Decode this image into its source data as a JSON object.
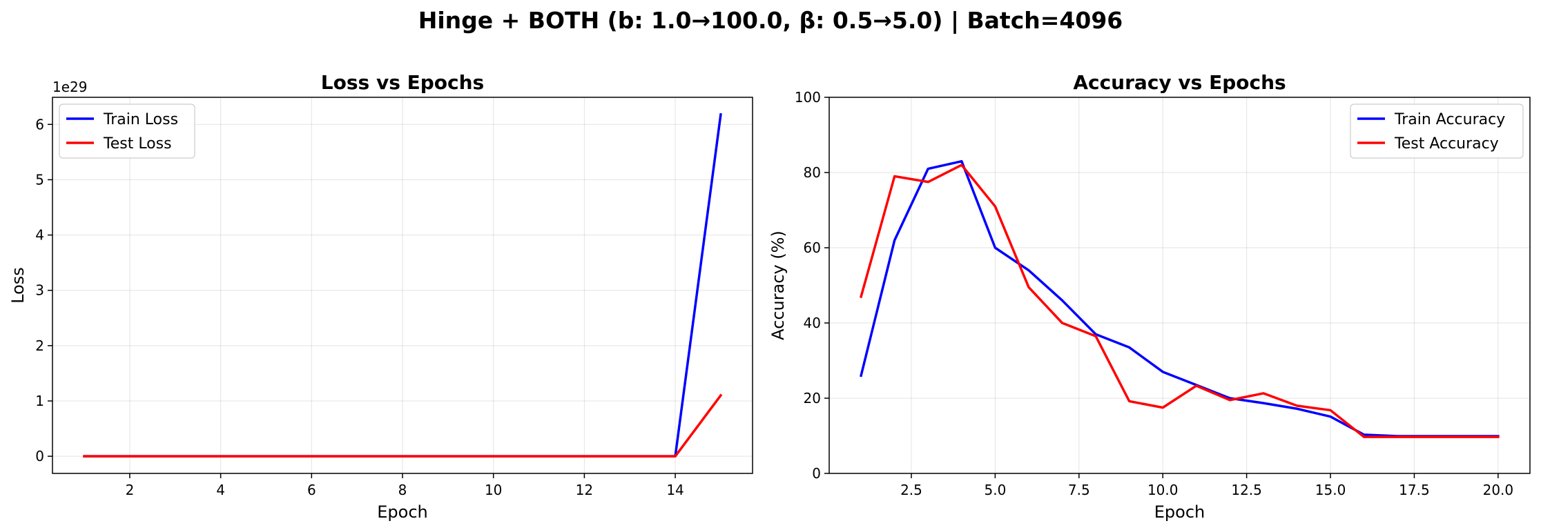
{
  "figure": {
    "suptitle": "Hinge + BOTH (b: 1.0→100.0, β: 0.5→5.0) | Batch=4096"
  },
  "chart_data": [
    {
      "type": "line",
      "title": "Loss vs Epochs",
      "xlabel": "Epoch",
      "ylabel": "Loss",
      "y_offset_label": "1e29",
      "xlim": [
        0.3,
        15.7
      ],
      "ylim": [
        -0.31,
        6.49
      ],
      "x_ticks": [
        2,
        4,
        6,
        8,
        10,
        12,
        14
      ],
      "x_tick_labels": [
        "2",
        "4",
        "6",
        "8",
        "10",
        "12",
        "14"
      ],
      "y_ticks": [
        0,
        1,
        2,
        3,
        4,
        5,
        6
      ],
      "y_tick_labels": [
        "0",
        "1",
        "2",
        "3",
        "4",
        "5",
        "6"
      ],
      "grid": true,
      "legend_position": "upper-left",
      "series": [
        {
          "name": "Train Loss",
          "color": "#0000ff",
          "x": [
            1,
            2,
            3,
            4,
            5,
            6,
            7,
            8,
            9,
            10,
            11,
            12,
            13,
            14,
            15
          ],
          "y": [
            0,
            0,
            0,
            0,
            0,
            0,
            0,
            0,
            0,
            0,
            0,
            0,
            0,
            0,
            6.18
          ]
        },
        {
          "name": "Test Loss",
          "color": "#ff0000",
          "x": [
            1,
            2,
            3,
            4,
            5,
            6,
            7,
            8,
            9,
            10,
            11,
            12,
            13,
            14,
            15
          ],
          "y": [
            0,
            0,
            0,
            0,
            0,
            0,
            0,
            0,
            0,
            0,
            0,
            0,
            0,
            0,
            1.1
          ]
        }
      ]
    },
    {
      "type": "line",
      "title": "Accuracy vs Epochs",
      "xlabel": "Epoch",
      "ylabel": "Accuracy (%)",
      "xlim": [
        0.05,
        20.95
      ],
      "ylim": [
        0,
        100
      ],
      "x_ticks": [
        2.5,
        5.0,
        7.5,
        10.0,
        12.5,
        15.0,
        17.5,
        20.0
      ],
      "x_tick_labels": [
        "2.5",
        "5.0",
        "7.5",
        "10.0",
        "12.5",
        "15.0",
        "17.5",
        "20.0"
      ],
      "y_ticks": [
        0,
        20,
        40,
        60,
        80,
        100
      ],
      "y_tick_labels": [
        "0",
        "20",
        "40",
        "60",
        "80",
        "100"
      ],
      "grid": true,
      "legend_position": "upper-right",
      "series": [
        {
          "name": "Train Accuracy",
          "color": "#0000ff",
          "x": [
            1,
            2,
            3,
            4,
            5,
            6,
            7,
            8,
            9,
            10,
            11,
            12,
            13,
            14,
            15,
            16,
            17,
            18,
            19,
            20
          ],
          "y": [
            26,
            62,
            81,
            83,
            60,
            54,
            46,
            37,
            33.5,
            27,
            23.5,
            20,
            18.7,
            17.2,
            15.1,
            10.3,
            9.9,
            9.9,
            9.9,
            9.9
          ]
        },
        {
          "name": "Test Accuracy",
          "color": "#ff0000",
          "x": [
            1,
            2,
            3,
            4,
            5,
            6,
            7,
            8,
            9,
            10,
            11,
            12,
            13,
            14,
            15,
            16,
            17,
            18,
            19,
            20
          ],
          "y": [
            47,
            79,
            77.5,
            82,
            71,
            49.5,
            40,
            36.5,
            19.2,
            17.5,
            23.3,
            19.5,
            21.3,
            18,
            16.8,
            9.7,
            9.7,
            9.7,
            9.7,
            9.7
          ]
        }
      ]
    }
  ]
}
